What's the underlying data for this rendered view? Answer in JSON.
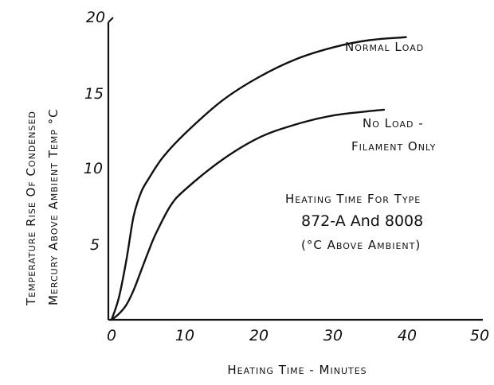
{
  "chart_data": {
    "type": "line",
    "title": "Heating Time For Type 872-A And 8008 (°C Above Ambient)",
    "title_lines": [
      "Heating Time For Type",
      "872-A And 8008",
      "(°C Above Ambient)"
    ],
    "xlabel": "Heating Time - Minutes",
    "ylabel_lines": [
      "Temperature Rise Of Condensed",
      "Mercury Above Ambient Temp °C"
    ],
    "xlim": [
      0,
      50
    ],
    "ylim": [
      0,
      20
    ],
    "x_ticks": [
      "0",
      "10",
      "20",
      "30",
      "40",
      "50"
    ],
    "y_ticks": [
      "5",
      "10",
      "15",
      "20"
    ],
    "grid": false,
    "series": [
      {
        "name": "Normal Load",
        "label_lines": [
          "Normal Load"
        ],
        "x": [
          0,
          1,
          2,
          3,
          4,
          5,
          7,
          10,
          15,
          20,
          25,
          30,
          35,
          40
        ],
        "y": [
          0,
          1.5,
          4.0,
          7.0,
          8.6,
          9.5,
          11.0,
          12.6,
          14.8,
          16.4,
          17.6,
          18.4,
          18.9,
          19.1
        ]
      },
      {
        "name": "No Load - Filament Only",
        "label_lines": [
          "No Load -",
          "Filament Only"
        ],
        "x": [
          0,
          1,
          2,
          3,
          4,
          5,
          6,
          8,
          10,
          15,
          20,
          25,
          30,
          35,
          37
        ],
        "y": [
          0,
          0.4,
          1.0,
          2.0,
          3.3,
          4.6,
          5.8,
          7.7,
          8.8,
          10.8,
          12.3,
          13.2,
          13.8,
          14.1,
          14.2
        ]
      }
    ]
  }
}
